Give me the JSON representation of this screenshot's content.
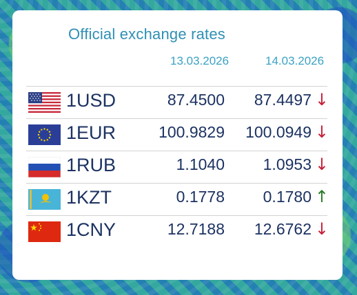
{
  "title": "Official exchange rates",
  "dates": [
    "13.03.2026",
    "14.03.2026"
  ],
  "colors": {
    "title": "#2f8fb4",
    "value": "#1c3262",
    "down": "#c6203a",
    "up": "#2a7a2a"
  },
  "rates": [
    {
      "code": "1USD",
      "flag": "us-flag",
      "rate1": "87.4500",
      "rate2": "87.4497",
      "trend_icon": "arrow-down-icon",
      "trend": "↓"
    },
    {
      "code": "1EUR",
      "flag": "eu-flag",
      "rate1": "100.9829",
      "rate2": "100.0949",
      "trend_icon": "arrow-down-icon",
      "trend": "↓"
    },
    {
      "code": "1RUB",
      "flag": "ru-flag",
      "rate1": "1.1040",
      "rate2": "1.0953",
      "trend_icon": "arrow-down-icon",
      "trend": "↓"
    },
    {
      "code": "1KZT",
      "flag": "kz-flag",
      "rate1": "0.1778",
      "rate2": "0.1780",
      "trend_icon": "arrow-up-icon",
      "trend": "↑"
    },
    {
      "code": "1CNY",
      "flag": "cn-flag",
      "rate1": "12.7188",
      "rate2": "12.6762",
      "trend_icon": "arrow-down-icon",
      "trend": "↓"
    }
  ]
}
